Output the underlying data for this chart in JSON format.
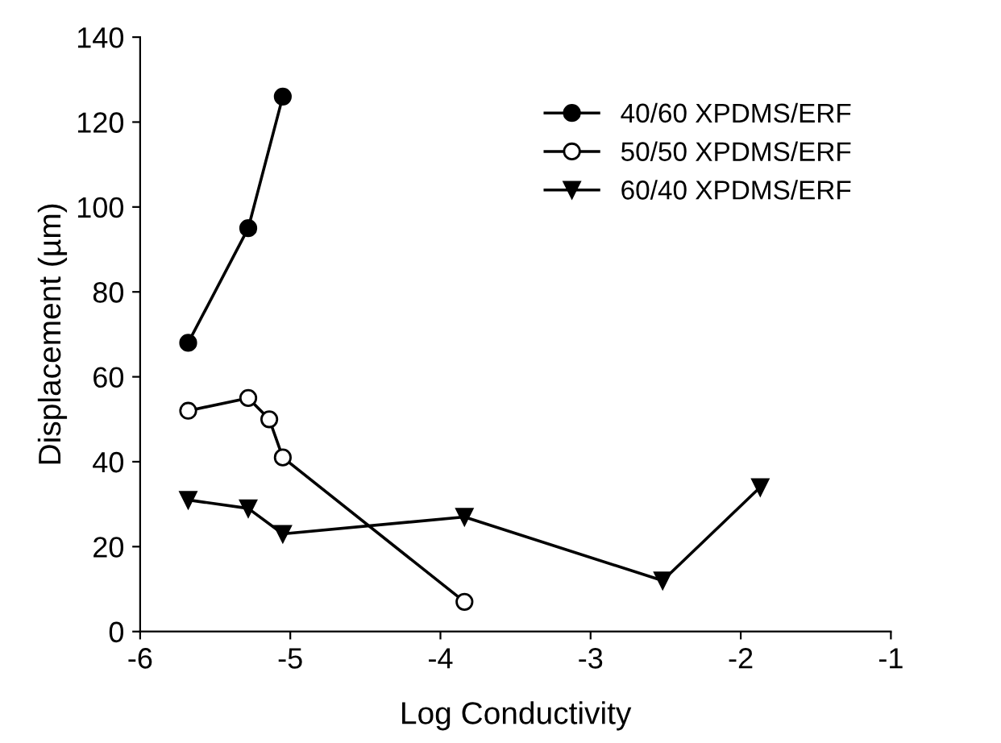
{
  "chart_data": {
    "type": "line",
    "xlabel": "Log Conductivity",
    "ylabel": "Displacement (µm)",
    "xlim": [
      -6,
      -1
    ],
    "xticks": [
      {
        "value": -6,
        "label": "-6"
      },
      {
        "value": -5,
        "label": "-5"
      },
      {
        "value": -4,
        "label": "-4"
      },
      {
        "value": -3,
        "label": "-3"
      },
      {
        "value": -2,
        "label": "-2"
      },
      {
        "value": -1,
        "label": "-1"
      }
    ],
    "ylim": [
      0,
      140
    ],
    "yticks": [
      0,
      20,
      40,
      60,
      80,
      100,
      120,
      140
    ],
    "grid": false,
    "legend": "top right",
    "series": [
      {
        "name": "40/60 XPDMS/ERF",
        "color": "#000000",
        "marker": "circle",
        "x": [
          -5.68,
          -5.28,
          -5.05
        ],
        "values": [
          68,
          95,
          126
        ]
      },
      {
        "name": "50/50 XPDMS/ERF",
        "color": "#000000",
        "marker": "circle",
        "x": [
          -5.68,
          -5.28,
          -5.14,
          -5.05,
          -3.84
        ],
        "values": [
          52,
          55,
          50,
          41,
          7
        ]
      },
      {
        "name": "60/40 XPDMS/ERF",
        "color": "#000000",
        "marker": "triangle",
        "x": [
          -5.68,
          -5.28,
          -5.05,
          -3.84,
          -2.52,
          -1.87
        ],
        "values": [
          31,
          29,
          23,
          27,
          12,
          34
        ]
      }
    ]
  }
}
